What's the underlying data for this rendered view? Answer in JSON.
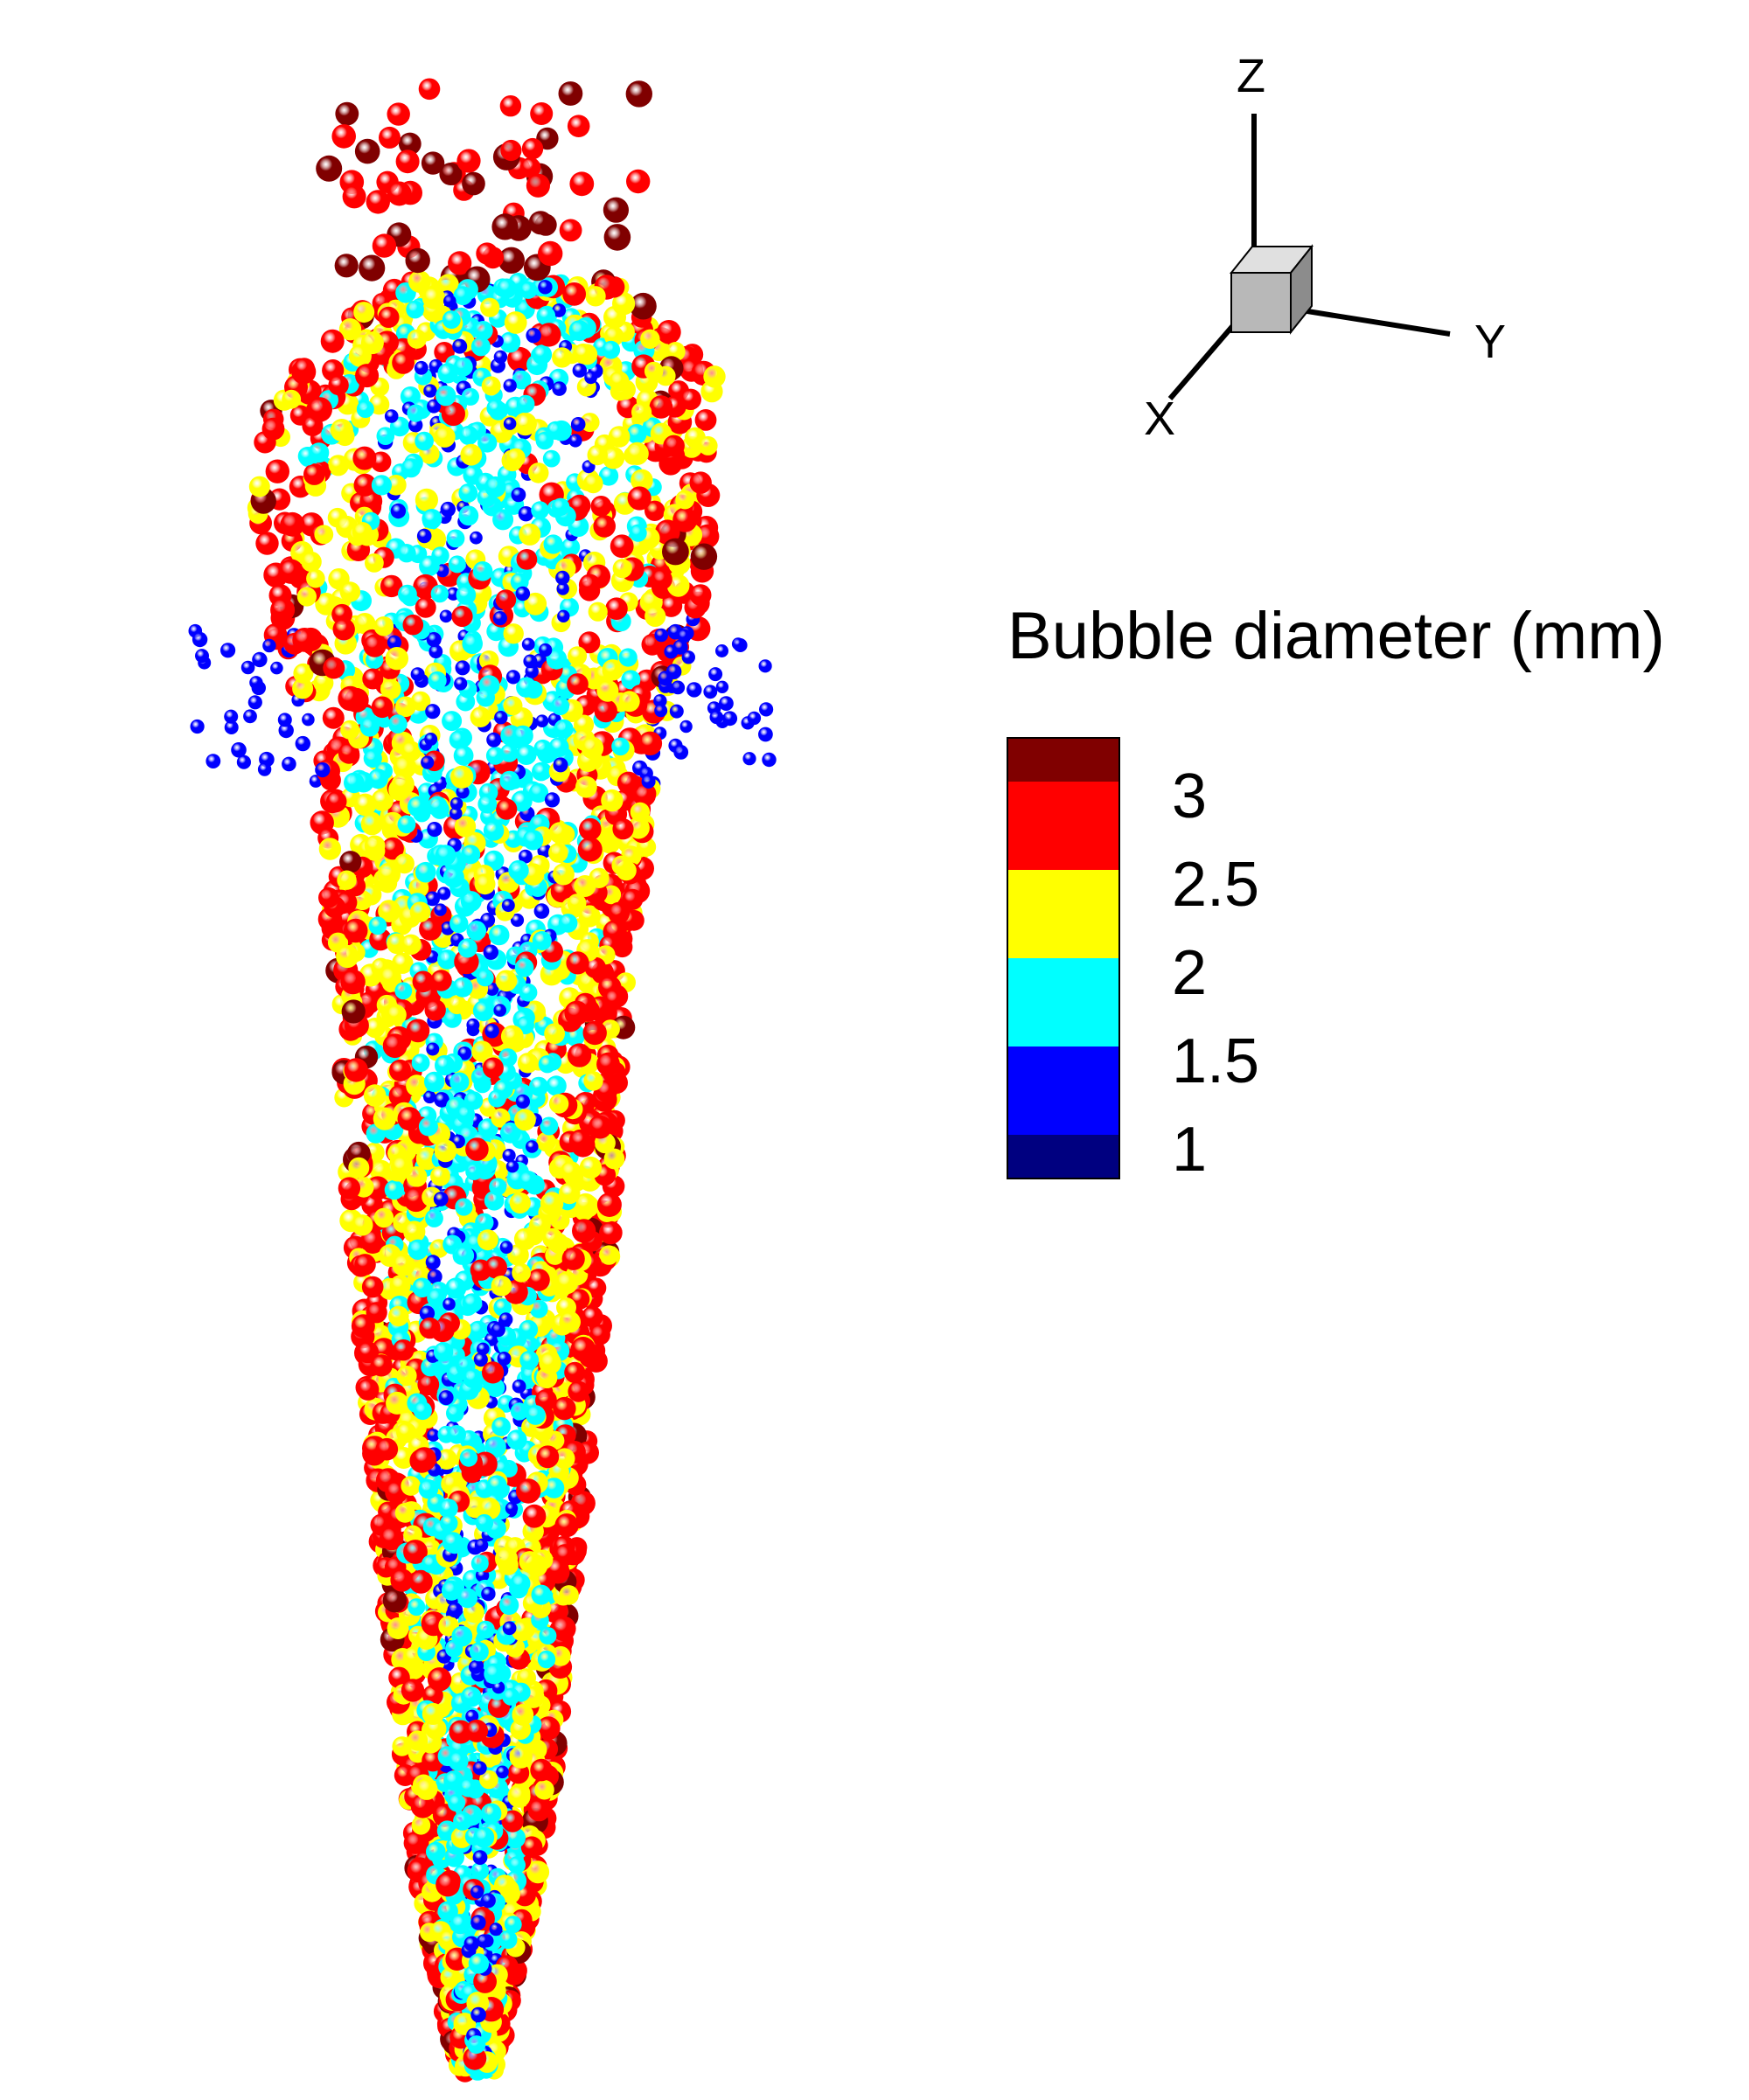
{
  "chart_data": {
    "type": "scatter",
    "title": "",
    "description_kind": "3D bubble plume scatter colored by diameter",
    "colorbar": {
      "title": "Bubble diameter (mm)",
      "ticks": [
        "3",
        "2.5",
        "2",
        "1.5",
        "1"
      ],
      "levels": [
        {
          "min": 1.0,
          "max": 1.25,
          "color": "#000080"
        },
        {
          "min": 1.25,
          "max": 1.75,
          "color": "#0000FF"
        },
        {
          "min": 1.75,
          "max": 2.25,
          "color": "#00FFFF"
        },
        {
          "min": 2.25,
          "max": 2.75,
          "color": "#FFFF00"
        },
        {
          "min": 2.75,
          "max": 3.25,
          "color": "#FF0000"
        },
        {
          "min": 3.25,
          "max": 3.5,
          "color": "#800000"
        }
      ]
    },
    "axes_triad": {
      "x_label": "X",
      "y_label": "Y",
      "z_label": "Z"
    }
  }
}
